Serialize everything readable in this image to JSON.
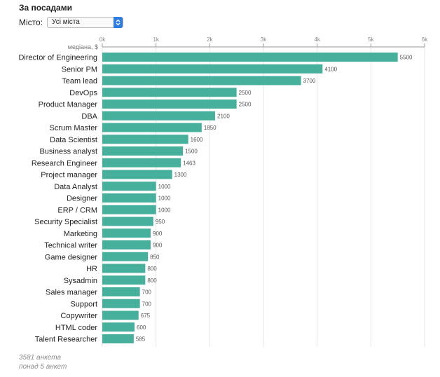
{
  "header": {
    "title": "За посадами",
    "city_label": "Місто:",
    "city_value": "Усі міста",
    "select_icon": "updown-chevron-icon",
    "accent_color": "#2f7de1"
  },
  "chart_data": {
    "type": "bar",
    "orientation": "horizontal",
    "xlabel": "медіана, $",
    "xlim": [
      0,
      6000
    ],
    "ticks": [
      {
        "value": 0,
        "label": "0k"
      },
      {
        "value": 1000,
        "label": "1k"
      },
      {
        "value": 2000,
        "label": "2k"
      },
      {
        "value": 3000,
        "label": "3k"
      },
      {
        "value": 4000,
        "label": "4k"
      },
      {
        "value": 5000,
        "label": "5k"
      },
      {
        "value": 6000,
        "label": "6k"
      }
    ],
    "grid": true,
    "bar_color": "#47b09d",
    "categories": [
      "Director of Engineering",
      "Senior PM",
      "Team lead",
      "DevOps",
      "Product Manager",
      "DBA",
      "Scrum Master",
      "Data Scientist",
      "Business analyst",
      "Research Engineer",
      "Project manager",
      "Data Analyst",
      "Designer",
      "ERP / CRM",
      "Security Specialist",
      "Marketing",
      "Technical writer",
      "Game designer",
      "HR",
      "Sysadmin",
      "Sales manager",
      "Support",
      "Copywriter",
      "HTML coder",
      "Talent Researcher"
    ],
    "values": [
      5500,
      4100,
      3700,
      2500,
      2500,
      2100,
      1850,
      1600,
      1500,
      1463,
      1300,
      1000,
      1000,
      1000,
      950,
      900,
      900,
      850,
      800,
      800,
      700,
      700,
      675,
      600,
      585
    ]
  },
  "footer": {
    "responses": "3581 анкета",
    "threshold": "понад 5 анкет"
  }
}
